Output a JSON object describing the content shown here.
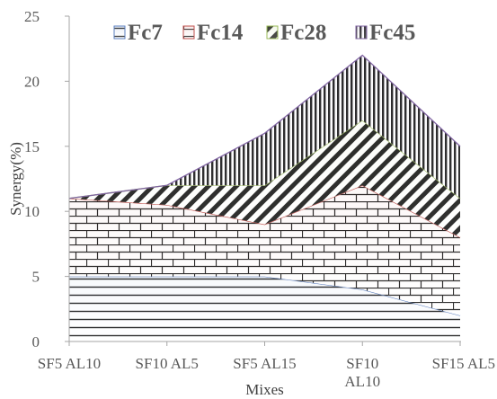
{
  "chart_data": {
    "type": "area",
    "stacked": true,
    "categories": [
      "SF5 AL10",
      "SF10 AL5",
      "SF5 AL15",
      "SF10\nAL10",
      "SF15 AL5"
    ],
    "series": [
      {
        "name": "Fc7",
        "values": [
          5,
          5,
          5,
          4,
          2
        ],
        "color": "#5b7fbf",
        "fill_pattern": "horizontal-lines"
      },
      {
        "name": "Fc14",
        "values": [
          6,
          5.5,
          4,
          8,
          6
        ],
        "color": "#c0504d",
        "fill_pattern": "bricks"
      },
      {
        "name": "Fc28",
        "values": [
          0,
          1.5,
          3,
          5,
          3
        ],
        "color": "#9bbb59",
        "fill_pattern": "diagonal-stripes"
      },
      {
        "name": "Fc45",
        "values": [
          0,
          0,
          4,
          5,
          4
        ],
        "color": "#8064a2",
        "fill_pattern": "vertical-lines"
      }
    ],
    "xlabel": "Mixes",
    "ylabel": "Synergy(%)",
    "ylim": [
      0,
      25
    ],
    "yticks": [
      "0",
      "5",
      "10",
      "15",
      "20",
      "25"
    ],
    "grid": false,
    "legend_position": "top"
  }
}
